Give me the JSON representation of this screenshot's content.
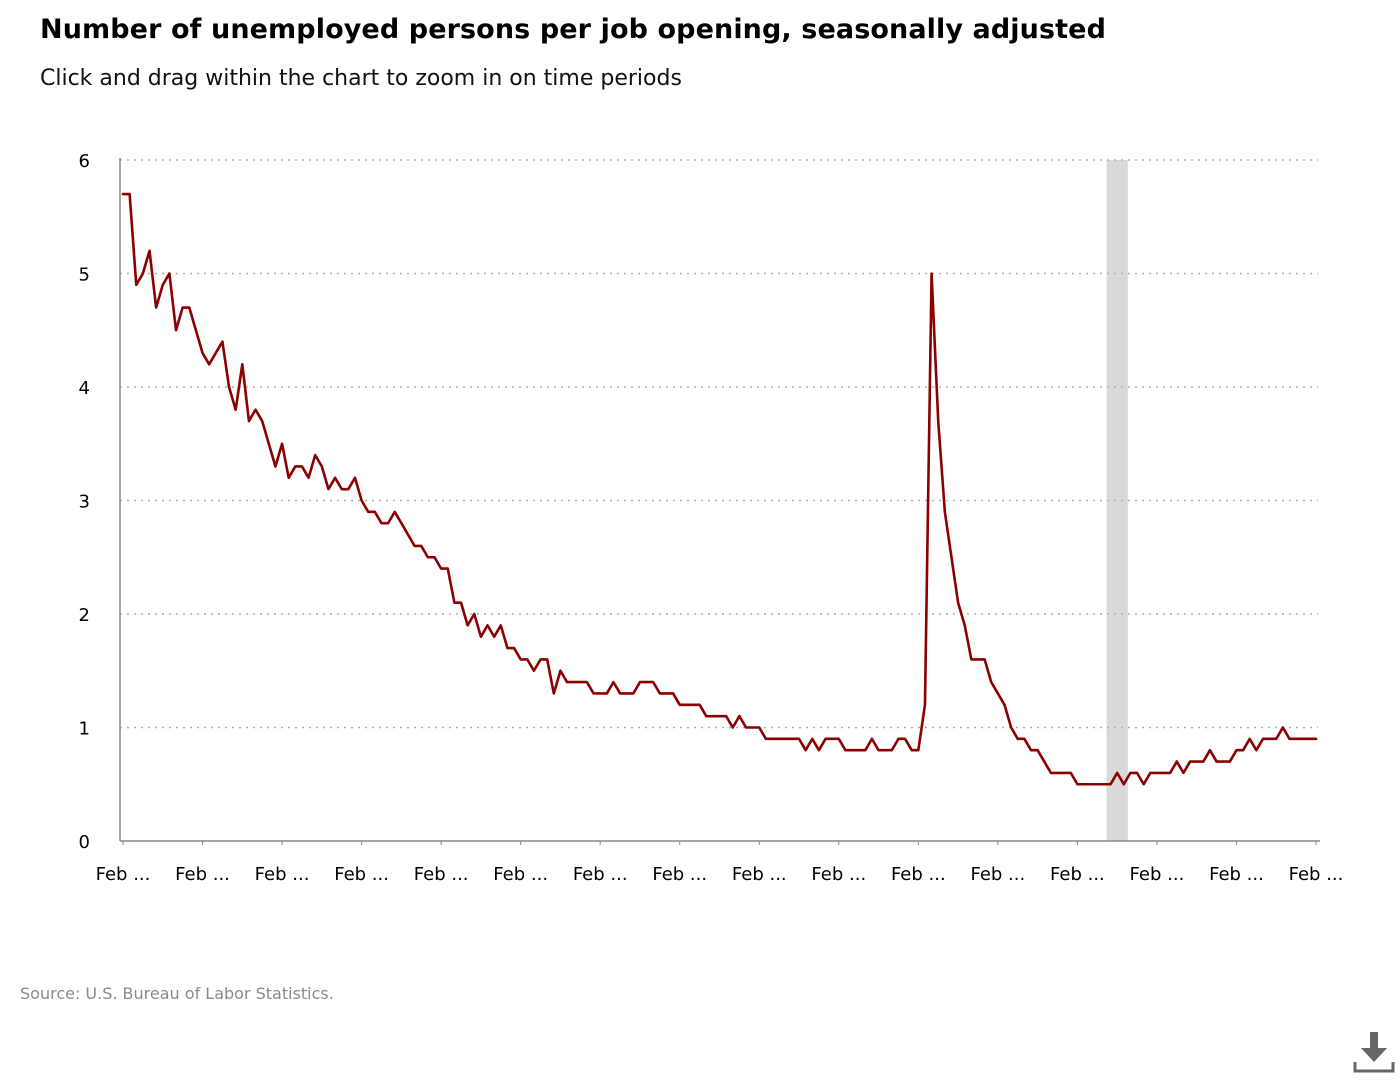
{
  "header": {
    "title": "Number of unemployed persons per job opening, seasonally adjusted",
    "subtitle": "Click and drag within the chart to zoom in on time periods"
  },
  "footer": {
    "source": "Source: U.S. Bureau of Labor Statistics.",
    "download_icon": "download-icon"
  },
  "colors": {
    "line": "#8b0000",
    "recession_band": "#d9d9d9",
    "grid": "#b0b0b0",
    "axis": "#888888"
  },
  "chart_data": {
    "type": "line",
    "title": "Number of unemployed persons per job opening, seasonally adjusted",
    "xlabel": "",
    "ylabel": "",
    "ylim": [
      0,
      6
    ],
    "yticks": [
      0,
      1,
      2,
      3,
      4,
      5,
      6
    ],
    "xtick_labels": [
      "Feb ...",
      "Feb ...",
      "Feb ...",
      "Feb ...",
      "Feb ...",
      "Feb ...",
      "Feb ...",
      "Feb ...",
      "Feb ...",
      "Feb ...",
      "Feb ...",
      "Feb ...",
      "Feb ...",
      "Feb ...",
      "Feb ...",
      "Feb ..."
    ],
    "grid": "horizontal dotted",
    "legend": "none",
    "shaded_period": {
      "start_index": 149,
      "end_index": 151
    },
    "series": [
      {
        "values": [
          5.7,
          5.7,
          4.9,
          5.0,
          5.2,
          4.7,
          4.9,
          5.0,
          4.5,
          4.7,
          4.7,
          4.5,
          4.3,
          4.2,
          4.3,
          4.4,
          4.0,
          3.8,
          4.2,
          3.7,
          3.8,
          3.7,
          3.5,
          3.3,
          3.5,
          3.2,
          3.3,
          3.3,
          3.2,
          3.4,
          3.3,
          3.1,
          3.2,
          3.1,
          3.1,
          3.2,
          3.0,
          2.9,
          2.9,
          2.8,
          2.8,
          2.9,
          2.8,
          2.7,
          2.6,
          2.6,
          2.5,
          2.5,
          2.4,
          2.4,
          2.1,
          2.1,
          1.9,
          2.0,
          1.8,
          1.9,
          1.8,
          1.9,
          1.7,
          1.7,
          1.6,
          1.6,
          1.5,
          1.6,
          1.6,
          1.3,
          1.5,
          1.4,
          1.4,
          1.4,
          1.4,
          1.3,
          1.3,
          1.3,
          1.4,
          1.3,
          1.3,
          1.3,
          1.4,
          1.4,
          1.4,
          1.3,
          1.3,
          1.3,
          1.2,
          1.2,
          1.2,
          1.2,
          1.1,
          1.1,
          1.1,
          1.1,
          1.0,
          1.1,
          1.0,
          1.0,
          1.0,
          0.9,
          0.9,
          0.9,
          0.9,
          0.9,
          0.9,
          0.8,
          0.9,
          0.8,
          0.9,
          0.9,
          0.9,
          0.8,
          0.8,
          0.8,
          0.8,
          0.9,
          0.8,
          0.8,
          0.8,
          0.9,
          0.9,
          0.8,
          0.8,
          1.2,
          5.0,
          3.7,
          2.9,
          2.5,
          2.1,
          1.9,
          1.6,
          1.6,
          1.6,
          1.4,
          1.3,
          1.2,
          1.0,
          0.9,
          0.9,
          0.8,
          0.8,
          0.7,
          0.6,
          0.6,
          0.6,
          0.6,
          0.5,
          0.5,
          0.5,
          0.5,
          0.5,
          0.5,
          0.6,
          0.5,
          0.6,
          0.6,
          0.5,
          0.6,
          0.6,
          0.6,
          0.6,
          0.7,
          0.6,
          0.7,
          0.7,
          0.7,
          0.8,
          0.7,
          0.7,
          0.7,
          0.8,
          0.8,
          0.9,
          0.8,
          0.9,
          0.9,
          0.9,
          1.0,
          0.9,
          0.9,
          0.9,
          0.9,
          0.9
        ]
      }
    ]
  }
}
